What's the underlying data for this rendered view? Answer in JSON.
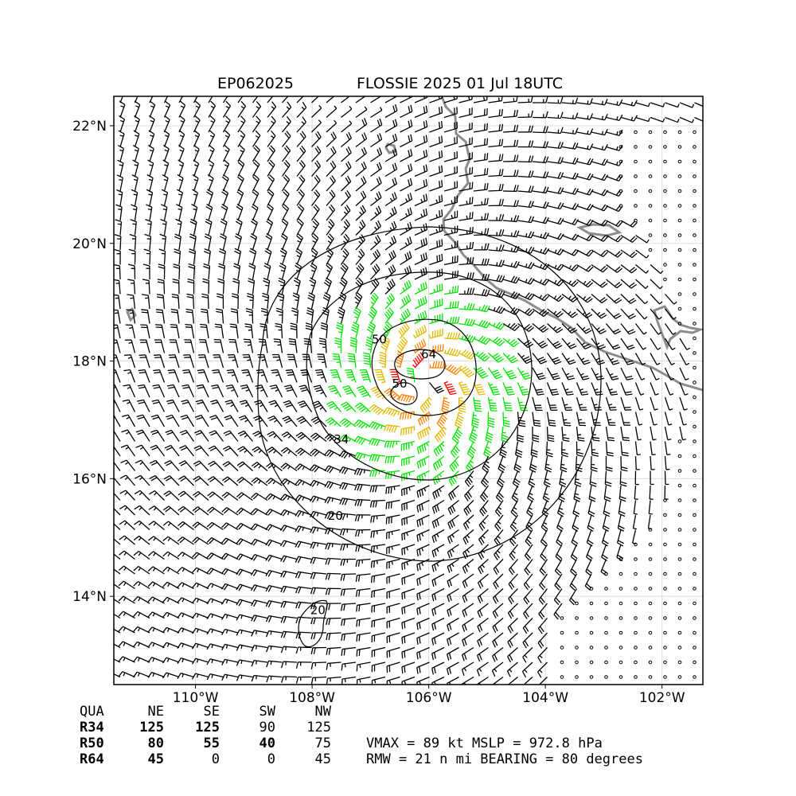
{
  "header": {
    "storm_id": "EP062025",
    "storm_title": "FLOSSIE 2025 01 Jul 18UTC"
  },
  "map": {
    "lon_range": [
      -111.4,
      -101.3
    ],
    "lat_range": [
      12.5,
      22.5
    ],
    "lon_ticks": [
      {
        "value": -110,
        "label": "110°W"
      },
      {
        "value": -108,
        "label": "108°W"
      },
      {
        "value": -106,
        "label": "106°W"
      },
      {
        "value": -104,
        "label": "104°W"
      },
      {
        "value": -102,
        "label": "102°W"
      }
    ],
    "lat_ticks": [
      {
        "value": 14,
        "label": "14°N"
      },
      {
        "value": 16,
        "label": "16°N"
      },
      {
        "value": 18,
        "label": "18°N"
      },
      {
        "value": 20,
        "label": "20°N"
      },
      {
        "value": 22,
        "label": "22°N"
      }
    ],
    "storm_center": {
      "lon": -106.1,
      "lat": 17.6
    },
    "contour_labels": [
      {
        "text": "20",
        "lon": -107.6,
        "lat": 15.3
      },
      {
        "text": "34",
        "lon": -107.5,
        "lat": 16.6
      },
      {
        "text": "50",
        "lon": -106.85,
        "lat": 18.3
      },
      {
        "text": "50",
        "lon": -106.5,
        "lat": 17.55
      },
      {
        "text": "64",
        "lon": -106.0,
        "lat": 18.05
      },
      {
        "text": "20",
        "lon": -107.9,
        "lat": 13.7
      }
    ],
    "colors": {
      "calm": "#000000",
      "band_20": "#000000",
      "band_34": "#00e400",
      "band_50": "#e6b800",
      "band_64": "#ff7f00",
      "band_80": "#ff0000",
      "coastline": "#8c8c8c",
      "grid": "#dcdcdc"
    }
  },
  "wind_radii": {
    "headers": [
      "QUA",
      "NE",
      "SE",
      "SW",
      "NW"
    ],
    "rows": [
      {
        "label": "R34",
        "values": [
          "125",
          "125",
          "90",
          "125"
        ]
      },
      {
        "label": "R50",
        "values": [
          "80",
          "55",
          "40",
          "75"
        ]
      },
      {
        "label": "R64",
        "values": [
          "45",
          "0",
          "0",
          "45"
        ]
      }
    ]
  },
  "summary": {
    "line1": "VMAX =  89 kt MSLP = 972.8 hPa",
    "line2": "RMW =  21 n mi BEARING =  80 degrees"
  }
}
